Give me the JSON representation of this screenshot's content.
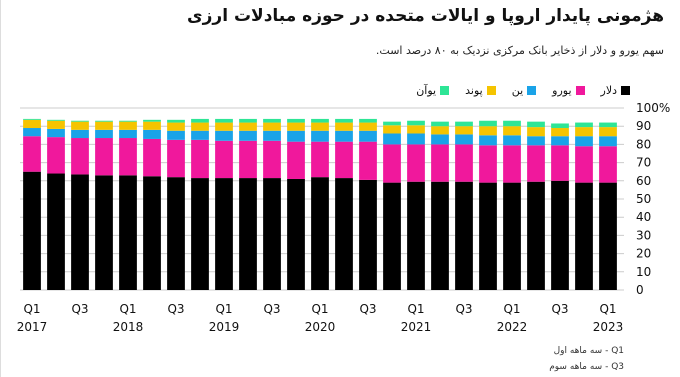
{
  "title": "هژمونی پایدار اروپا و ایالات متحده در حوزه مبادلات ارزی",
  "subtitle": "سهم یورو و دلار از ذخایر بانک مرکزی نزدیک به ۸۰ درصد است.",
  "notes": [
    {
      "code": "Q1",
      "text": "سه ماهه اول"
    },
    {
      "code": "Q3",
      "text": "سه ماهه سوم"
    }
  ],
  "colors": {
    "dollar": "#000000",
    "euro": "#f0189c",
    "yen": "#1aa3e8",
    "pound": "#f5c400",
    "yuan": "#2ee596",
    "gridline": "#cccccc"
  },
  "chart_data": {
    "type": "bar",
    "stacked": true,
    "title": "هژمونی پایدار اروپا و ایالات متحده در حوزه مبادلات ارزی",
    "subtitle": "سهم یورو و دلار از ذخایر بانک مرکزی نزدیک به ۸۰ درصد است.",
    "categories": [
      "Q1 2017",
      "Q2 2017",
      "Q3 2017",
      "Q4 2017",
      "Q1 2018",
      "Q2 2018",
      "Q3 2018",
      "Q4 2018",
      "Q1 2019",
      "Q2 2019",
      "Q3 2019",
      "Q4 2019",
      "Q1 2020",
      "Q2 2020",
      "Q3 2020",
      "Q4 2020",
      "Q1 2021",
      "Q2 2021",
      "Q3 2021",
      "Q4 2021",
      "Q1 2022",
      "Q2 2022",
      "Q3 2022",
      "Q4 2022",
      "Q1 2023"
    ],
    "x_tick_labels": [
      {
        "index": 0,
        "quarter": "Q1",
        "year": "2017"
      },
      {
        "index": 2,
        "quarter": "Q3",
        "year": ""
      },
      {
        "index": 4,
        "quarter": "Q1",
        "year": "2018"
      },
      {
        "index": 6,
        "quarter": "Q3",
        "year": ""
      },
      {
        "index": 8,
        "quarter": "Q1",
        "year": "2019"
      },
      {
        "index": 10,
        "quarter": "Q3",
        "year": ""
      },
      {
        "index": 12,
        "quarter": "Q1",
        "year": "2020"
      },
      {
        "index": 14,
        "quarter": "Q3",
        "year": ""
      },
      {
        "index": 16,
        "quarter": "Q1",
        "year": "2021"
      },
      {
        "index": 18,
        "quarter": "Q3",
        "year": ""
      },
      {
        "index": 20,
        "quarter": "Q1",
        "year": "2022"
      },
      {
        "index": 22,
        "quarter": "Q3",
        "year": ""
      },
      {
        "index": 24,
        "quarter": "Q1",
        "year": "2023"
      }
    ],
    "y_ticks": [
      "100%",
      "90",
      "80",
      "70",
      "60",
      "50",
      "40",
      "30",
      "20",
      "10",
      "0"
    ],
    "ylim": [
      0,
      100
    ],
    "grid": true,
    "legend_position": "top",
    "series": [
      {
        "name": "دلار",
        "color": "#000000",
        "values": [
          65,
          64,
          63.5,
          63,
          63,
          62.5,
          62,
          61.5,
          61.5,
          61.5,
          61.5,
          61,
          62,
          61.5,
          60.5,
          59,
          59.5,
          59.5,
          59.5,
          59,
          59,
          59.5,
          60,
          59,
          59
        ]
      },
      {
        "name": "یورو",
        "color": "#f0189c",
        "values": [
          19.5,
          20,
          20,
          20.5,
          20.5,
          20.5,
          20.5,
          21,
          20.5,
          20.5,
          20.5,
          20.5,
          19.5,
          20,
          21,
          21,
          20.5,
          20.5,
          20.5,
          20.5,
          20.5,
          20,
          19.5,
          20,
          20
        ]
      },
      {
        "name": "ین",
        "color": "#1aa3e8",
        "values": [
          4.5,
          4.5,
          4.5,
          4.5,
          4.5,
          5,
          5,
          5,
          5.5,
          5.5,
          5.5,
          6,
          6,
          6,
          6,
          6,
          6,
          5.5,
          5.5,
          5.5,
          5.5,
          5,
          5,
          5.5,
          5.5
        ]
      },
      {
        "name": "پوند",
        "color": "#f5c400",
        "values": [
          4.5,
          4.5,
          4.5,
          4.5,
          4.5,
          4.5,
          4.5,
          4.5,
          4.5,
          4.5,
          4.5,
          4.5,
          4.5,
          4.5,
          4.5,
          4.5,
          4.5,
          4.5,
          4.5,
          5,
          5,
          5,
          4.5,
          5,
          5
        ]
      },
      {
        "name": "یوآن",
        "color": "#2ee596",
        "values": [
          0.5,
          0.5,
          0.5,
          0.5,
          0.5,
          1,
          1.5,
          2,
          2,
          2,
          2,
          2,
          2,
          2,
          2,
          2,
          2.5,
          2.5,
          2.5,
          3,
          3,
          3,
          2.5,
          2.5,
          2.5
        ]
      }
    ]
  }
}
